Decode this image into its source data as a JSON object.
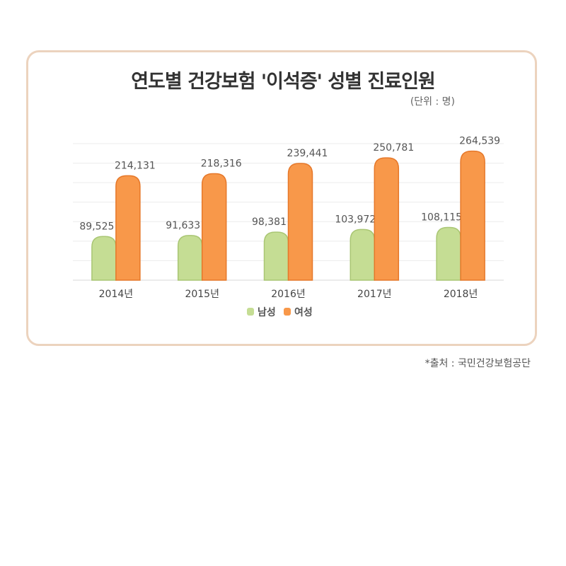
{
  "chart_data": {
    "type": "bar",
    "title": "연도별 건강보험 '이석증' 성별 진료인원",
    "unit_label": "(단위 : 명)",
    "categories": [
      "2014년",
      "2015년",
      "2016년",
      "2017년",
      "2018년"
    ],
    "series": [
      {
        "name": "남성",
        "color": "#c5dd94",
        "values": [
          89525,
          91633,
          98381,
          103972,
          108115
        ],
        "labels": [
          "89,525",
          "91,633",
          "98,381",
          "103,972",
          "108,115"
        ]
      },
      {
        "name": "여성",
        "color": "#f8984a",
        "values": [
          214131,
          218316,
          239441,
          250781,
          264539
        ],
        "labels": [
          "214,131",
          "218,316",
          "239,441",
          "250,781",
          "264,539"
        ]
      }
    ],
    "ylim": [
      0,
      280000
    ],
    "grid": true,
    "legend_position": "bottom-center"
  },
  "source_note": "*출처 : 국민건강보험공단"
}
